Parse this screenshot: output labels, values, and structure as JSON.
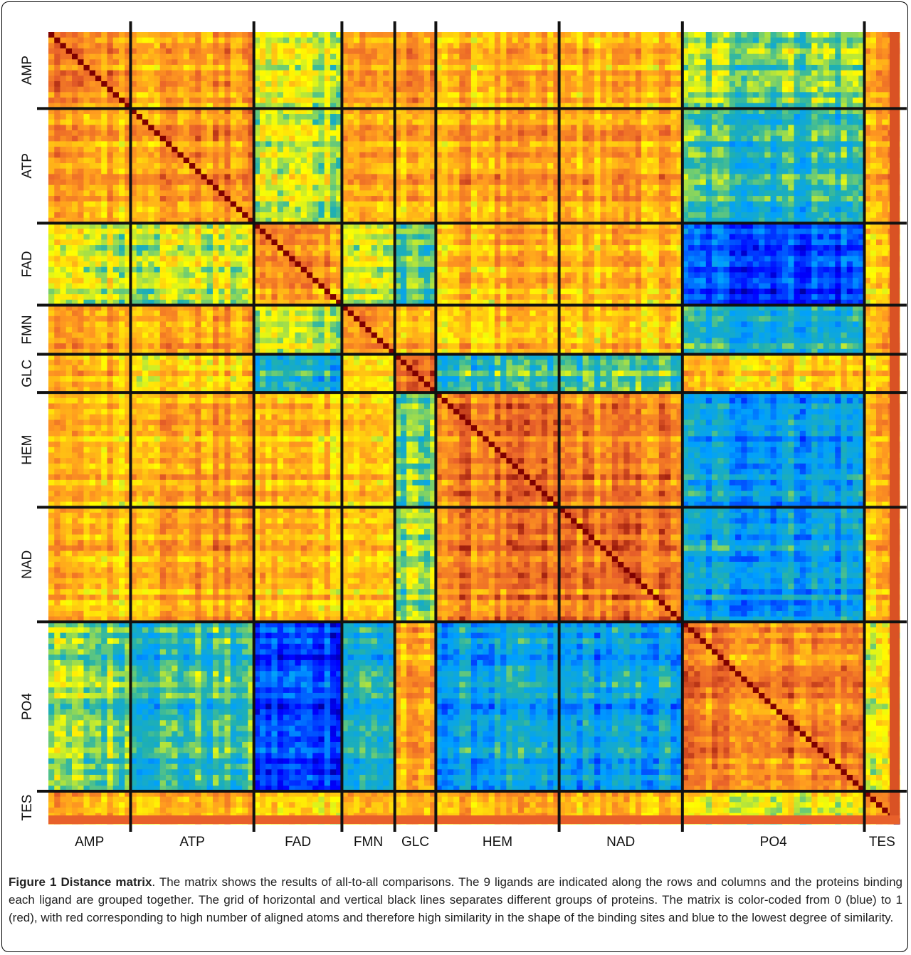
{
  "chart_data": {
    "type": "heatmap",
    "title": "",
    "xlabel": "",
    "ylabel": "",
    "value_range": [
      0,
      1
    ],
    "colormap": [
      "#00008f",
      "#0000ff",
      "#00a0ff",
      "#20b0b0",
      "#ffff00",
      "#ff9a20",
      "#e8602a",
      "#7f0000"
    ],
    "groups": [
      {
        "label": "AMP",
        "size": 14
      },
      {
        "label": "ATP",
        "size": 21
      },
      {
        "label": "FAD",
        "size": 15
      },
      {
        "label": "FMN",
        "size": 9
      },
      {
        "label": "GLC",
        "size": 7
      },
      {
        "label": "HEM",
        "size": 21
      },
      {
        "label": "NAD",
        "size": 21
      },
      {
        "label": "PO4",
        "size": 31
      },
      {
        "label": "TES",
        "size": 6
      }
    ],
    "block_similarity": [
      [
        0.75,
        0.72,
        0.55,
        0.72,
        0.72,
        0.68,
        0.68,
        0.48,
        0.72
      ],
      [
        0.72,
        0.75,
        0.55,
        0.72,
        0.68,
        0.72,
        0.72,
        0.42,
        0.72
      ],
      [
        0.55,
        0.55,
        0.75,
        0.55,
        0.42,
        0.68,
        0.68,
        0.18,
        0.66
      ],
      [
        0.72,
        0.72,
        0.55,
        0.75,
        0.66,
        0.66,
        0.66,
        0.38,
        0.72
      ],
      [
        0.72,
        0.68,
        0.42,
        0.66,
        0.85,
        0.45,
        0.48,
        0.7,
        0.7
      ],
      [
        0.68,
        0.72,
        0.68,
        0.66,
        0.45,
        0.8,
        0.78,
        0.32,
        0.72
      ],
      [
        0.68,
        0.72,
        0.68,
        0.66,
        0.48,
        0.78,
        0.8,
        0.32,
        0.7
      ],
      [
        0.48,
        0.42,
        0.18,
        0.38,
        0.7,
        0.32,
        0.32,
        0.78,
        0.6
      ],
      [
        0.72,
        0.72,
        0.66,
        0.72,
        0.7,
        0.72,
        0.7,
        0.6,
        0.78
      ]
    ],
    "diagonal_value": 1.0,
    "grid_lines": true
  },
  "caption": {
    "figure_label": "Figure 1 Distance matrix",
    "text": ". The matrix shows the results of all-to-all comparisons. The 9 ligands are indicated along the rows and columns and the proteins binding each ligand are grouped together. The grid of horizontal and vertical black lines separates different groups of proteins. The matrix is color-coded from 0 (blue) to 1 (red), with red corresponding to high number of aligned atoms and therefore high similarity in the shape of the binding sites and blue to the lowest degree of similarity."
  }
}
